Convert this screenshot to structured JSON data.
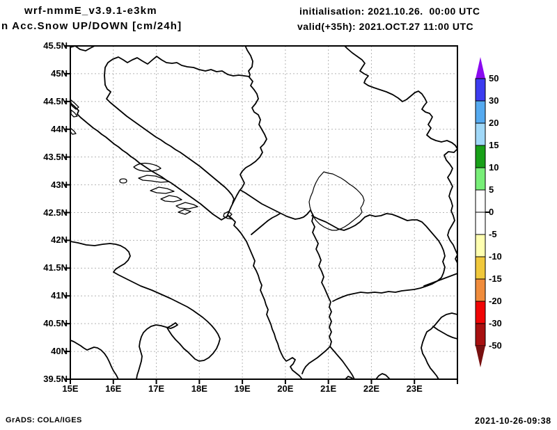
{
  "header": {
    "model_title": "wrf-nmmE_v3.9.1-e3km",
    "product_title": "n Acc.Snow UP/DOWN [cm/24h]",
    "init_label": "initialisation: 2021.10.26.  00:00 UTC",
    "valid_label": "valid(+35h): 2021.OCT.27 11:00 UTC"
  },
  "footer": {
    "left": "GrADS: COLA/IGES",
    "right": "2021-10-26-09:38"
  },
  "axes": {
    "lat_labels": [
      "45.5N",
      "45N",
      "44.5N",
      "44N",
      "43.5N",
      "43N",
      "42.5N",
      "42N",
      "41.5N",
      "41N",
      "40.5N",
      "40N",
      "39.5N"
    ],
    "lon_labels": [
      "15E",
      "16E",
      "17E",
      "18E",
      "19E",
      "20E",
      "21E",
      "22E",
      "23E"
    ]
  },
  "colorbar": {
    "tick_labels": [
      "50",
      "30",
      "20",
      "15",
      "10",
      "5",
      "0",
      "-5",
      "-10",
      "-15",
      "-20",
      "-30",
      "-50"
    ],
    "segment_colors": [
      "#8a0af0",
      "#3c3cf0",
      "#55aaf0",
      "#a0d8f8",
      "#18a018",
      "#78ee78",
      "#ffffff",
      "#ffffff",
      "#ffffb0",
      "#f0c83c",
      "#f08c3c",
      "#f00505",
      "#a81010",
      "#781010"
    ]
  },
  "chart_data": {
    "type": "heatmap",
    "title": "Acc.Snow UP/DOWN [cm/24h]",
    "subtitle": "wrf-nmmE_v3.9.1-e3km, init 2021.10.26 00:00 UTC, valid(+35h) 2021.OCT.27 11:00 UTC",
    "xlabel": "longitude",
    "ylabel": "latitude",
    "x_ticks": [
      "15E",
      "16E",
      "17E",
      "18E",
      "19E",
      "20E",
      "21E",
      "22E",
      "23E"
    ],
    "y_ticks": [
      "39.5N",
      "40N",
      "40.5N",
      "41N",
      "41.5N",
      "42N",
      "42.5N",
      "43N",
      "43.5N",
      "44N",
      "44.5N",
      "45N",
      "45.5N"
    ],
    "xlim": [
      15,
      24
    ],
    "ylim": [
      39.5,
      45.5
    ],
    "grid": true,
    "legend_position": "right-colorbar",
    "colorbar_levels": [
      50,
      30,
      20,
      15,
      10,
      5,
      0,
      -5,
      -10,
      -15,
      -20,
      -30,
      -50
    ],
    "colorbar_colors": [
      "#8a0af0",
      "#3c3cf0",
      "#55aaf0",
      "#a0d8f8",
      "#18a018",
      "#78ee78",
      "#ffffff",
      "#ffffff",
      "#ffffb0",
      "#f0c83c",
      "#f08c3c",
      "#f00505",
      "#a81010",
      "#781010"
    ],
    "field_note": "no shaded contours visible: 24h accumulated snow change is in the white band (-5 to +5 cm) over the entire domain (Adriatic / Balkans region map with country outlines only)"
  }
}
